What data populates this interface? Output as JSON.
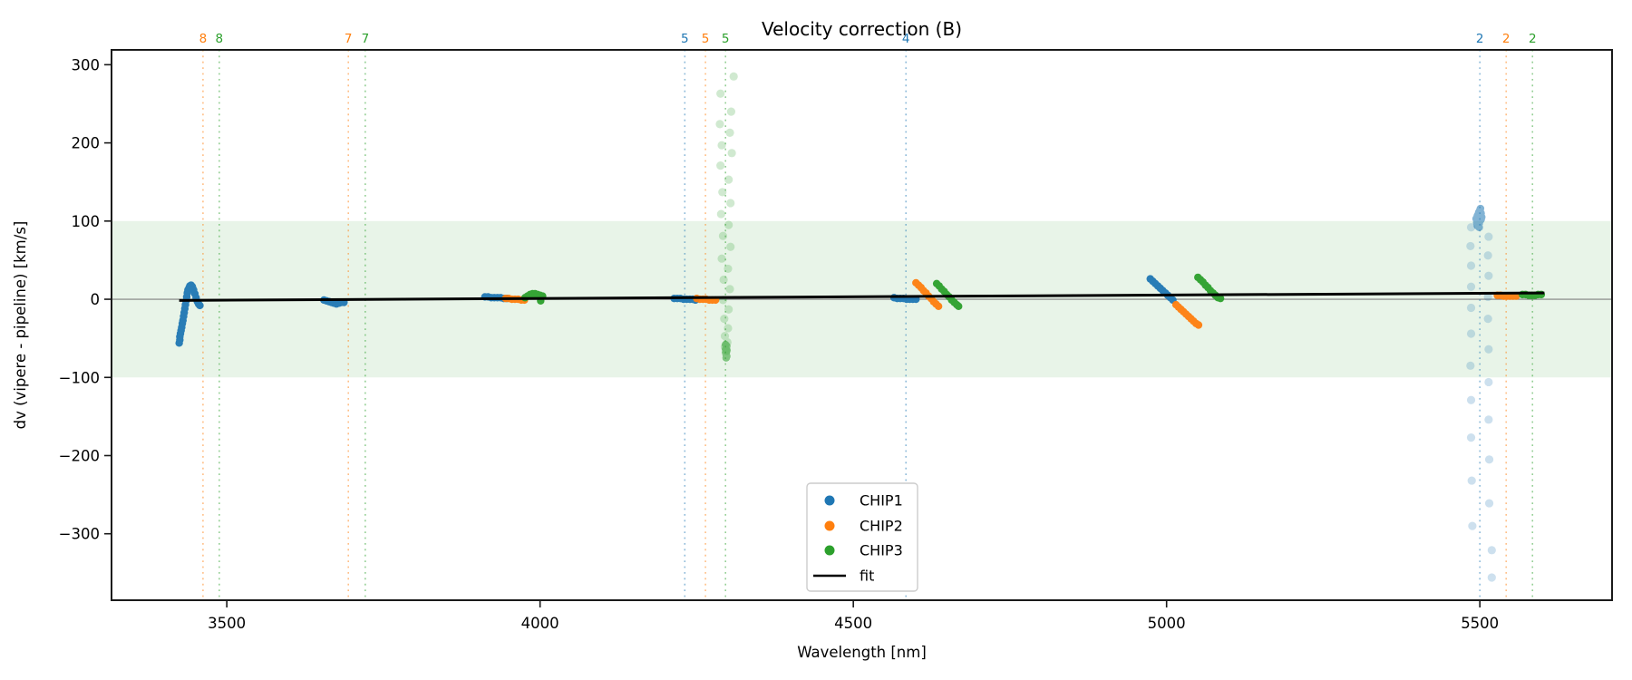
{
  "figure": {
    "title": "Velocity correction (B)"
  },
  "chart_data": {
    "type": "scatter",
    "title": "Velocity correction (B)",
    "xlabel": "Wavelength [nm]",
    "ylabel": "dv (vipere - pipeline) [km/s]",
    "xlim": [
      3316,
      5711
    ],
    "ylim": [
      -385,
      319
    ],
    "grid": false,
    "x_ticks": [
      {
        "value": 3500,
        "label": "3500"
      },
      {
        "value": 4000,
        "label": "4000"
      },
      {
        "value": 4500,
        "label": "4500"
      },
      {
        "value": 5000,
        "label": "5000"
      },
      {
        "value": 5500,
        "label": "5500"
      }
    ],
    "y_ticks": [
      {
        "value": 300,
        "label": "300"
      },
      {
        "value": 200,
        "label": "200"
      },
      {
        "value": 100,
        "label": "100"
      },
      {
        "value": 0,
        "label": "0"
      },
      {
        "value": -100,
        "label": "−100"
      },
      {
        "value": -200,
        "label": "−200"
      },
      {
        "value": -300,
        "label": "−300"
      }
    ],
    "band": {
      "ymin": -100,
      "ymax": 100,
      "color": "rgba(0,128,0,0.09)"
    },
    "zero_line": {
      "y": 0,
      "color": "#808080"
    },
    "fit_line": {
      "label": "fit",
      "color": "#000000",
      "points": [
        [
          3424,
          -1.5
        ],
        [
          5603,
          8
        ]
      ]
    },
    "marker_lines": [
      {
        "label": "8",
        "color": "#ff7f0e",
        "wavelength": 3462
      },
      {
        "label": "8",
        "color": "#2ca02c",
        "wavelength": 3488
      },
      {
        "label": "7",
        "color": "#ff7f0e",
        "wavelength": 3694
      },
      {
        "label": "7",
        "color": "#2ca02c",
        "wavelength": 3721
      },
      {
        "label": "5",
        "color": "#1f77b4",
        "wavelength": 4231
      },
      {
        "label": "5",
        "color": "#ff7f0e",
        "wavelength": 4264
      },
      {
        "label": "5",
        "color": "#2ca02c",
        "wavelength": 4296
      },
      {
        "label": "4",
        "color": "#1f77b4",
        "wavelength": 4584
      },
      {
        "label": "2",
        "color": "#1f77b4",
        "wavelength": 5500
      },
      {
        "label": "2",
        "color": "#ff7f0e",
        "wavelength": 5542
      },
      {
        "label": "2",
        "color": "#2ca02c",
        "wavelength": 5584
      }
    ],
    "series": [
      {
        "name": "CHIP1",
        "color": "#1f77b4",
        "points": [
          [
            3424,
            -56
          ],
          [
            3425,
            -52
          ],
          [
            3425,
            -48
          ],
          [
            3426,
            -44
          ],
          [
            3427,
            -40
          ],
          [
            3428,
            -36
          ],
          [
            3429,
            -31
          ],
          [
            3430,
            -27
          ],
          [
            3431,
            -22
          ],
          [
            3432,
            -17
          ],
          [
            3433,
            -12
          ],
          [
            3434,
            -7
          ],
          [
            3435,
            -2
          ],
          [
            3436,
            3
          ],
          [
            3437,
            8
          ],
          [
            3438,
            12
          ],
          [
            3440,
            15
          ],
          [
            3441,
            17
          ],
          [
            3443,
            18
          ],
          [
            3445,
            16
          ],
          [
            3447,
            12
          ],
          [
            3449,
            7
          ],
          [
            3451,
            2
          ],
          [
            3453,
            -3
          ],
          [
            3455,
            -6
          ],
          [
            3457,
            -8
          ],
          [
            3655,
            -1
          ],
          [
            3659,
            -2
          ],
          [
            3663,
            -3
          ],
          [
            3667,
            -4
          ],
          [
            3671,
            -5
          ],
          [
            3675,
            -6
          ],
          [
            3679,
            -5
          ],
          [
            3683,
            -4
          ],
          [
            3687,
            -4
          ],
          [
            3912,
            3
          ],
          [
            3917,
            3
          ],
          [
            3922,
            2
          ],
          [
            3927,
            2
          ],
          [
            3932,
            2
          ],
          [
            3937,
            2
          ],
          [
            3942,
            1
          ],
          [
            3947,
            1
          ],
          [
            4214,
            1
          ],
          [
            4219,
            1
          ],
          [
            4224,
            1
          ],
          [
            4229,
            0
          ],
          [
            4234,
            0
          ],
          [
            4239,
            0
          ],
          [
            4244,
            0
          ],
          [
            4248,
            -1
          ],
          [
            4565,
            2
          ],
          [
            4570,
            1
          ],
          [
            4575,
            1
          ],
          [
            4580,
            1
          ],
          [
            4585,
            0
          ],
          [
            4590,
            0
          ],
          [
            4595,
            0
          ],
          [
            4600,
            0
          ],
          [
            4974,
            26
          ],
          [
            4978,
            23
          ],
          [
            4982,
            20
          ],
          [
            4986,
            17
          ],
          [
            4990,
            14
          ],
          [
            4994,
            11
          ],
          [
            4998,
            8
          ],
          [
            5002,
            5
          ],
          [
            5006,
            2
          ],
          [
            5010,
            -1
          ]
        ],
        "medium_points": [
          [
            5494,
            103
          ],
          [
            5496,
            107
          ],
          [
            5498,
            111
          ],
          [
            5500,
            114
          ],
          [
            5502,
            110
          ],
          [
            5503,
            105
          ],
          [
            5501,
            101
          ],
          [
            5499,
            97
          ],
          [
            5497,
            101
          ],
          [
            5495,
            98
          ],
          [
            5498,
            105
          ],
          [
            5500,
            108
          ],
          [
            5502,
            102
          ],
          [
            5496,
            94
          ],
          [
            5499,
            92
          ],
          [
            5501,
            116
          ]
        ],
        "faint_points": [
          [
            5486,
            92
          ],
          [
            5514,
            80
          ],
          [
            5485,
            68
          ],
          [
            5513,
            56
          ],
          [
            5486,
            43
          ],
          [
            5514,
            30
          ],
          [
            5486,
            16
          ],
          [
            5513,
            3
          ],
          [
            5486,
            -11
          ],
          [
            5513,
            -25
          ],
          [
            5486,
            -44
          ],
          [
            5514,
            -64
          ],
          [
            5485,
            -85
          ],
          [
            5514,
            -106
          ],
          [
            5486,
            -129
          ],
          [
            5514,
            -154
          ],
          [
            5486,
            -177
          ],
          [
            5515,
            -205
          ],
          [
            5487,
            -232
          ],
          [
            5515,
            -261
          ],
          [
            5488,
            -290
          ],
          [
            5519,
            -321
          ],
          [
            5519,
            -356
          ]
        ]
      },
      {
        "name": "CHIP2",
        "color": "#ff7f0e",
        "points": [
          [
            3945,
            1
          ],
          [
            3950,
            1
          ],
          [
            3955,
            0
          ],
          [
            3960,
            0
          ],
          [
            3965,
            0
          ],
          [
            3970,
            -1
          ],
          [
            3975,
            -1
          ],
          [
            4250,
            1
          ],
          [
            4255,
            0
          ],
          [
            4260,
            0
          ],
          [
            4265,
            0
          ],
          [
            4270,
            -1
          ],
          [
            4275,
            -1
          ],
          [
            4280,
            -1
          ],
          [
            4600,
            21
          ],
          [
            4604,
            18
          ],
          [
            4608,
            15
          ],
          [
            4612,
            11
          ],
          [
            4616,
            8
          ],
          [
            4620,
            4
          ],
          [
            4624,
            1
          ],
          [
            4628,
            -3
          ],
          [
            4632,
            -6
          ],
          [
            4636,
            -9
          ],
          [
            5015,
            -7
          ],
          [
            5019,
            -10
          ],
          [
            5023,
            -13
          ],
          [
            5027,
            -16
          ],
          [
            5031,
            -19
          ],
          [
            5035,
            -22
          ],
          [
            5039,
            -25
          ],
          [
            5043,
            -28
          ],
          [
            5047,
            -31
          ],
          [
            5051,
            -33
          ],
          [
            5528,
            5
          ],
          [
            5533,
            5
          ],
          [
            5538,
            4
          ],
          [
            5543,
            4
          ],
          [
            5548,
            4
          ],
          [
            5553,
            4
          ],
          [
            5558,
            4
          ]
        ],
        "medium_points": [],
        "faint_points": []
      },
      {
        "name": "CHIP3",
        "color": "#2ca02c",
        "points": [
          [
            3976,
            2
          ],
          [
            3980,
            4
          ],
          [
            3984,
            6
          ],
          [
            3988,
            7
          ],
          [
            3992,
            7
          ],
          [
            3996,
            6
          ],
          [
            4000,
            5
          ],
          [
            4004,
            4
          ],
          [
            4001,
            -2
          ],
          [
            4633,
            20
          ],
          [
            4637,
            17
          ],
          [
            4641,
            13
          ],
          [
            4645,
            10
          ],
          [
            4649,
            6
          ],
          [
            4653,
            3
          ],
          [
            4657,
            -1
          ],
          [
            4661,
            -4
          ],
          [
            4665,
            -7
          ],
          [
            4668,
            -9
          ],
          [
            5050,
            28
          ],
          [
            5054,
            25
          ],
          [
            5058,
            22
          ],
          [
            5062,
            18
          ],
          [
            5066,
            15
          ],
          [
            5070,
            11
          ],
          [
            5074,
            8
          ],
          [
            5078,
            5
          ],
          [
            5082,
            2
          ],
          [
            5086,
            1
          ],
          [
            5568,
            6
          ],
          [
            5573,
            6
          ],
          [
            5578,
            5
          ],
          [
            5583,
            5
          ],
          [
            5588,
            5
          ],
          [
            5593,
            6
          ],
          [
            5598,
            6
          ]
        ],
        "medium_points": [
          [
            4296,
            -58
          ],
          [
            4297,
            -62
          ],
          [
            4298,
            -65
          ],
          [
            4296,
            -68
          ],
          [
            4297,
            -71
          ],
          [
            4298,
            -73
          ],
          [
            4297,
            -75
          ],
          [
            4296,
            -64
          ],
          [
            4298,
            -60
          ],
          [
            4297,
            -68
          ]
        ],
        "faint_points": [
          [
            4309,
            285
          ],
          [
            4288,
            263
          ],
          [
            4305,
            240
          ],
          [
            4287,
            224
          ],
          [
            4303,
            213
          ],
          [
            4290,
            197
          ],
          [
            4306,
            187
          ],
          [
            4288,
            171
          ],
          [
            4301,
            153
          ],
          [
            4291,
            137
          ],
          [
            4304,
            123
          ],
          [
            4289,
            109
          ],
          [
            4301,
            95
          ],
          [
            4292,
            81
          ],
          [
            4304,
            67
          ],
          [
            4290,
            52
          ],
          [
            4300,
            39
          ],
          [
            4293,
            25
          ],
          [
            4303,
            13
          ],
          [
            4292,
            -1
          ],
          [
            4301,
            -13
          ],
          [
            4294,
            -25
          ],
          [
            4300,
            -37
          ],
          [
            4295,
            -47
          ],
          [
            4299,
            -55
          ],
          [
            4295,
            -61
          ],
          [
            4298,
            -66
          ]
        ]
      }
    ],
    "legend": {
      "position": "lower-center",
      "entries": [
        {
          "label": "CHIP1",
          "color": "#1f77b4",
          "marker": "dot"
        },
        {
          "label": "CHIP2",
          "color": "#ff7f0e",
          "marker": "dot"
        },
        {
          "label": "CHIP3",
          "color": "#2ca02c",
          "marker": "dot"
        },
        {
          "label": "fit",
          "color": "#000000",
          "marker": "line"
        }
      ]
    },
    "colors": {
      "chip1": "#1f77b4",
      "chip2": "#ff7f0e",
      "chip3": "#2ca02c",
      "fit": "#000000",
      "spine": "#1a1a1a"
    }
  }
}
